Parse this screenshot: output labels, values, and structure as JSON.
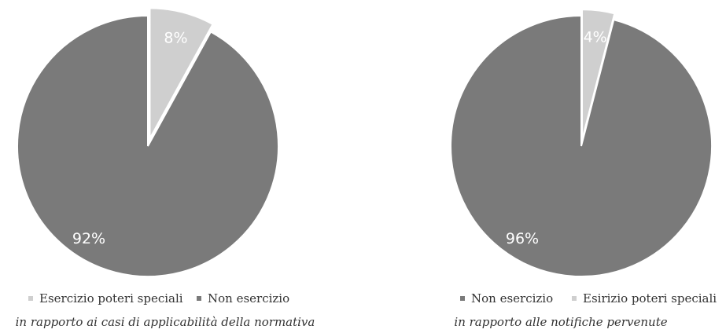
{
  "colors": {
    "special": "#cfcfcf",
    "non": "#7a7a7a",
    "separator": "#ffffff"
  },
  "chart_data": [
    {
      "type": "pie",
      "labels": [
        "Esercizio poteri speciali",
        "Non esercizio"
      ],
      "values": [
        8,
        92
      ],
      "slice_labels": [
        "8%",
        "92%"
      ],
      "legend": [
        "Esercizio poteri speciali",
        "Non esercizio"
      ],
      "legend_placement": "bottom",
      "caption": "in rapporto ai casi di applicabilità della normativa"
    },
    {
      "type": "pie",
      "labels": [
        "Esirizio poteri speciali",
        "Non esercizio"
      ],
      "values": [
        4,
        96
      ],
      "slice_labels": [
        "4%",
        "96%"
      ],
      "legend": [
        "Non esercizio",
        "Esirizio poteri speciali"
      ],
      "legend_placement": "bottom",
      "caption": "in rapporto alle notifiche pervenute"
    }
  ]
}
